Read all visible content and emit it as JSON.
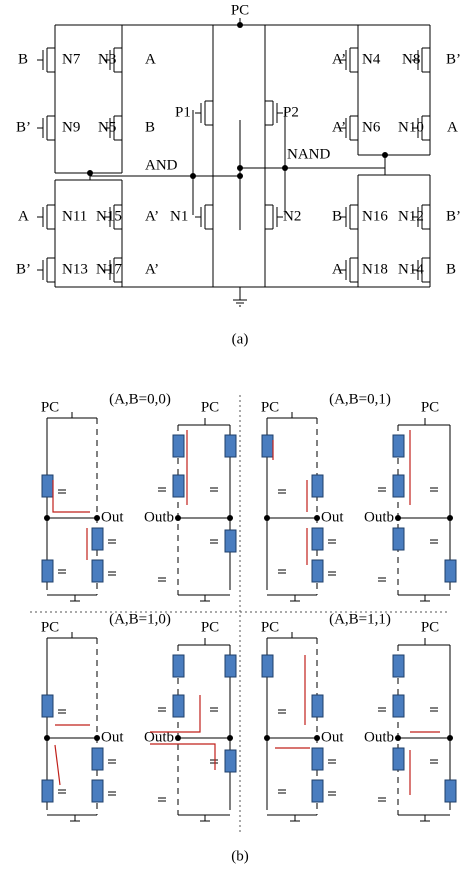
{
  "figure_a": {
    "labels": [
      "PC",
      "B",
      "N7",
      "N3",
      "A",
      "A’",
      "N4",
      "N8",
      "B’",
      "B’",
      "N9",
      "N5",
      "B",
      "A’",
      "N6",
      "N10",
      "A",
      "P1",
      "P2",
      "AND",
      "NAND",
      "A",
      "N11",
      "N15",
      "A’",
      "N1",
      "N2",
      "B",
      "N16",
      "N12",
      "B’",
      "B’",
      "N13",
      "N17",
      "A’",
      "A",
      "N18",
      "N14",
      "B"
    ],
    "caption": "(a)"
  },
  "figure_b": {
    "panels": [
      {
        "pc_left": "PC",
        "title": "(A,B=0,0)",
        "pc_right": "PC",
        "out": "Out",
        "outb": "Outb"
      },
      {
        "pc_left": "PC",
        "title": "(A,B=0,1)",
        "pc_right": "PC",
        "out": "Out",
        "outb": "Outb"
      },
      {
        "pc_left": "PC",
        "title": "(A,B=1,0)",
        "pc_right": "PC",
        "out": "Out",
        "outb": "Outb"
      },
      {
        "pc_left": "PC",
        "title": "(A,B=1,1)",
        "pc_right": "PC",
        "out": "Out",
        "outb": "Outb"
      }
    ],
    "caption": "(b)"
  }
}
